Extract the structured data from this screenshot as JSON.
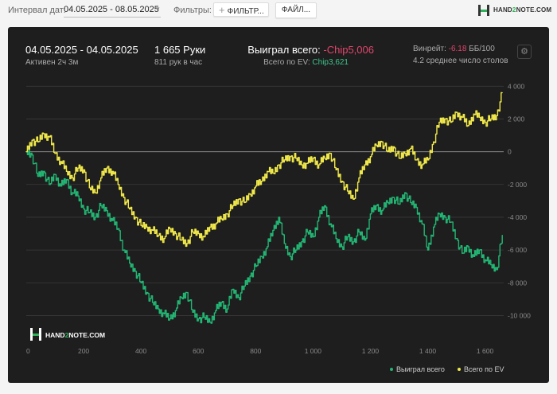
{
  "toolbar": {
    "date_label": "Интервал дат:",
    "date_value": "04.05.2025 - 08.05.2025",
    "filters_label": "Фильтры:",
    "filter_button": "ФИЛЬТР...",
    "file_button": "ФАЙЛ...",
    "logo_part1": "HAND",
    "logo_part2": "2",
    "logo_part3": "NOTE.COM"
  },
  "summary": {
    "session_range": "04.05.2025 - 04.05.2025",
    "active": "Активен 2ч 3м",
    "hands": "1 665 Руки",
    "hands_rate": "811 рук в час",
    "won_label": "Выиграл всего:",
    "won_value": "-Chip5,006",
    "ev_label": "Всего по EV:",
    "ev_value": "Chip3,621",
    "winrate_label": "Винрейт:",
    "winrate_value": "-6.18",
    "winrate_unit": "ББ/100",
    "tables": "4.2 среднее число столов"
  },
  "watermark": {
    "part1": "HAND",
    "part2": "2",
    "part3": "NOTE.COM"
  },
  "colors": {
    "won": "#22b573",
    "ev": "#f0e84a",
    "panel": "#1e1e1e",
    "negative": "#e2456d",
    "positive": "#3ec38b"
  },
  "chart_data": {
    "type": "line",
    "xlabel": "",
    "ylabel": "",
    "xlim": [
      0,
      1665
    ],
    "ylim": [
      -11000,
      4500
    ],
    "x_ticks": [
      0,
      200,
      400,
      600,
      800,
      1000,
      1200,
      1400,
      1600
    ],
    "x_tick_labels": [
      "0",
      "200",
      "400",
      "600",
      "800",
      "1 000",
      "1 200",
      "1 400",
      "1 600"
    ],
    "y_ticks": [
      4000,
      2000,
      0,
      -2000,
      -4000,
      -6000,
      -8000,
      -10000
    ],
    "y_tick_labels": [
      "4 000",
      "2 000",
      "0",
      "-2 000",
      "-4 000",
      "-6 000",
      "-8 000",
      "-10 000"
    ],
    "legend_position": "bottom-right",
    "series": [
      {
        "name": "Выиграл всего",
        "color": "#22b573",
        "x": [
          0,
          20,
          40,
          60,
          80,
          100,
          120,
          140,
          160,
          180,
          200,
          220,
          240,
          260,
          280,
          300,
          320,
          340,
          360,
          380,
          400,
          420,
          440,
          460,
          480,
          500,
          520,
          540,
          560,
          580,
          600,
          620,
          640,
          660,
          680,
          700,
          720,
          740,
          760,
          780,
          800,
          820,
          840,
          860,
          880,
          900,
          920,
          940,
          960,
          980,
          1000,
          1020,
          1040,
          1060,
          1080,
          1100,
          1120,
          1140,
          1160,
          1180,
          1200,
          1220,
          1240,
          1260,
          1280,
          1300,
          1320,
          1340,
          1360,
          1380,
          1400,
          1420,
          1440,
          1460,
          1480,
          1500,
          1520,
          1540,
          1560,
          1580,
          1600,
          1620,
          1640,
          1660
        ],
        "values": [
          0,
          -200,
          -1500,
          -1200,
          -2000,
          -1400,
          -2100,
          -1700,
          -2500,
          -2700,
          -3500,
          -3700,
          -4000,
          -3300,
          -3600,
          -4200,
          -4700,
          -6000,
          -6800,
          -7300,
          -8000,
          -8600,
          -9200,
          -9600,
          -9900,
          -10200,
          -9700,
          -8900,
          -8600,
          -9800,
          -10200,
          -10100,
          -10400,
          -9700,
          -9200,
          -9600,
          -8400,
          -8900,
          -8200,
          -7600,
          -7000,
          -6400,
          -5800,
          -4800,
          -4000,
          -5600,
          -6400,
          -6000,
          -5500,
          -4900,
          -5200,
          -4000,
          -3300,
          -4400,
          -5300,
          -5800,
          -5200,
          -5500,
          -4900,
          -5400,
          -3800,
          -3300,
          -3600,
          -3100,
          -2800,
          -3200,
          -2500,
          -3100,
          -3400,
          -4400,
          -6000,
          -4600,
          -3800,
          -4000,
          -4300,
          -5300,
          -6200,
          -5800,
          -6400,
          -6000,
          -6600,
          -6900,
          -7200,
          -5100
        ]
      },
      {
        "name": "Всего по EV",
        "color": "#f0e84a",
        "x": [
          0,
          20,
          40,
          60,
          80,
          100,
          120,
          140,
          160,
          180,
          200,
          220,
          240,
          260,
          280,
          300,
          320,
          340,
          360,
          380,
          400,
          420,
          440,
          460,
          480,
          500,
          520,
          540,
          560,
          580,
          600,
          620,
          640,
          660,
          680,
          700,
          720,
          740,
          760,
          780,
          800,
          820,
          840,
          860,
          880,
          900,
          920,
          940,
          960,
          980,
          1000,
          1020,
          1040,
          1060,
          1080,
          1100,
          1120,
          1140,
          1160,
          1180,
          1200,
          1220,
          1240,
          1260,
          1280,
          1300,
          1320,
          1340,
          1360,
          1380,
          1400,
          1420,
          1440,
          1460,
          1480,
          1500,
          1520,
          1540,
          1560,
          1580,
          1600,
          1620,
          1640,
          1660
        ],
        "values": [
          0,
          700,
          600,
          1100,
          900,
          -100,
          -600,
          -1200,
          -1600,
          -1000,
          -1100,
          -2200,
          -2500,
          -1600,
          -1000,
          -1200,
          -2000,
          -2800,
          -3500,
          -4000,
          -4500,
          -4600,
          -4800,
          -5100,
          -5300,
          -4700,
          -5000,
          -5400,
          -5600,
          -4900,
          -5000,
          -5200,
          -4600,
          -4400,
          -4100,
          -3800,
          -3300,
          -2900,
          -3100,
          -2600,
          -2100,
          -1800,
          -1200,
          -1300,
          -800,
          -500,
          -300,
          -400,
          -800,
          -700,
          -400,
          -800,
          -400,
          -100,
          -1100,
          -1800,
          -2400,
          -2900,
          -1600,
          -800,
          -300,
          400,
          600,
          0,
          300,
          -400,
          -100,
          200,
          -500,
          -800,
          -500,
          600,
          1800,
          2000,
          1800,
          2400,
          2100,
          1600,
          2300,
          2100,
          1800,
          2000,
          2200,
          3600
        ]
      }
    ]
  }
}
